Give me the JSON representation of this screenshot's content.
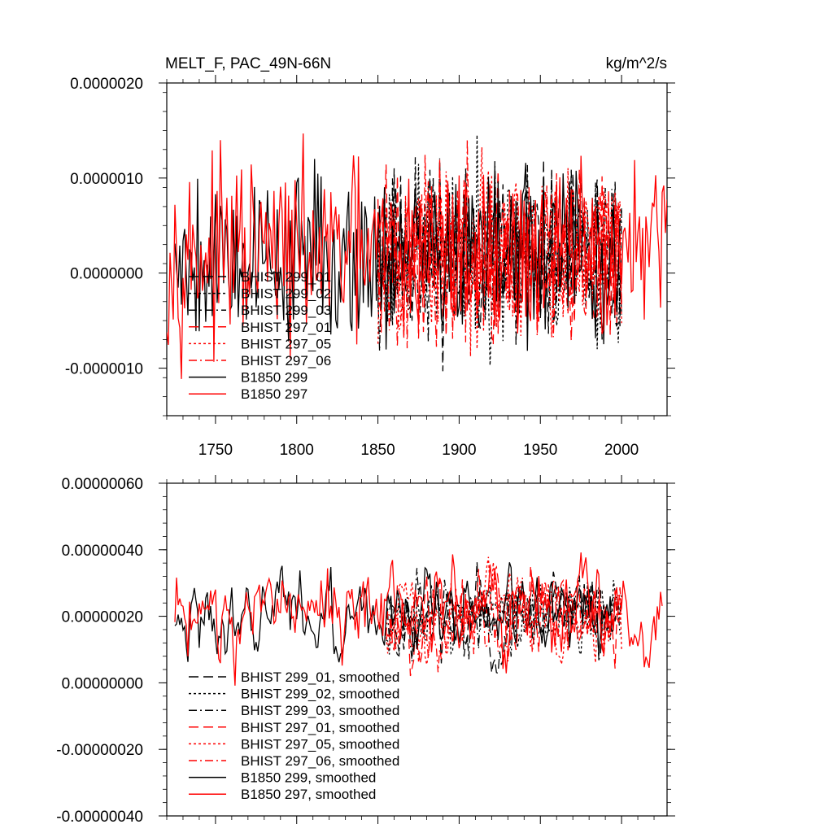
{
  "header": {
    "title": "MELT_F, PAC_49N-66N",
    "units": "kg/m^2/s"
  },
  "colors": {
    "black": "#000000",
    "red": "#ff0000"
  },
  "chart_data": [
    {
      "type": "line",
      "title": "MELT_F, PAC_49N-66N",
      "units": "kg/m^2/s",
      "xlim": [
        1720,
        2028
      ],
      "ylim": [
        -1.5e-06,
        2e-06
      ],
      "x_ticks": [
        1750,
        1800,
        1850,
        1900,
        1950,
        2000
      ],
      "x_tick_labels": [
        "1750",
        "1800",
        "1850",
        "1900",
        "1950",
        "2000"
      ],
      "y_ticks": [
        2e-06,
        1e-06,
        0,
        -1e-06
      ],
      "y_tick_labels": [
        "0.0000020",
        "0.0000010",
        "0.0000000",
        "-0.0000010"
      ],
      "legend_location": "lower-left",
      "series": [
        {
          "name": "BHIST 299_01",
          "color": "#000000",
          "dash": "long-dash",
          "x_start": 1850,
          "x_end": 2000,
          "mean": 2e-07,
          "amp": 4.5e-07,
          "seed": 11
        },
        {
          "name": "BHIST 299_02",
          "color": "#000000",
          "dash": "dot",
          "x_start": 1850,
          "x_end": 2000,
          "mean": 2e-07,
          "amp": 4.5e-07,
          "seed": 23
        },
        {
          "name": "BHIST 299_03",
          "color": "#000000",
          "dash": "dash-dot",
          "x_start": 1850,
          "x_end": 2000,
          "mean": 2e-07,
          "amp": 4.5e-07,
          "seed": 37
        },
        {
          "name": "BHIST 297_01",
          "color": "#ff0000",
          "dash": "long-dash",
          "x_start": 1850,
          "x_end": 2000,
          "mean": 2e-07,
          "amp": 4.5e-07,
          "seed": 41
        },
        {
          "name": "BHIST 297_05",
          "color": "#ff0000",
          "dash": "dot",
          "x_start": 1850,
          "x_end": 2000,
          "mean": 2e-07,
          "amp": 4.5e-07,
          "seed": 53
        },
        {
          "name": "BHIST 297_06",
          "color": "#ff0000",
          "dash": "dash-dot",
          "x_start": 1850,
          "x_end": 2000,
          "mean": 2e-07,
          "amp": 4.5e-07,
          "seed": 67
        },
        {
          "name": "B1850 299",
          "color": "#000000",
          "dash": "solid",
          "x_start": 1725,
          "x_end": 2000,
          "mean": 2e-07,
          "amp": 4.5e-07,
          "seed": 79
        },
        {
          "name": "B1850 297",
          "color": "#ff0000",
          "dash": "solid",
          "x_start": 1720,
          "x_end": 2028,
          "mean": 2e-07,
          "amp": 4.5e-07,
          "seed": 97
        }
      ]
    },
    {
      "type": "line",
      "title": "",
      "xlim": [
        1720,
        2028
      ],
      "ylim": [
        -4e-07,
        6e-07
      ],
      "x_ticks": [
        1750,
        1800,
        1850,
        1900,
        1950,
        2000
      ],
      "x_tick_labels": [],
      "y_ticks": [
        6e-07,
        4e-07,
        2e-07,
        0,
        -2e-07,
        -4e-07
      ],
      "y_tick_labels": [
        "0.00000060",
        "0.00000040",
        "0.00000020",
        "0.00000000",
        "-0.00000020",
        "-0.00000040"
      ],
      "legend_location": "lower-left",
      "series": [
        {
          "name": "BHIST 299_01, smoothed",
          "color": "#000000",
          "dash": "long-dash",
          "x_start": 1855,
          "x_end": 2000,
          "mean": 2e-07,
          "amp": 1.2e-07,
          "seed": 111
        },
        {
          "name": "BHIST 299_02, smoothed",
          "color": "#000000",
          "dash": "dot",
          "x_start": 1855,
          "x_end": 2000,
          "mean": 2e-07,
          "amp": 1.2e-07,
          "seed": 123
        },
        {
          "name": "BHIST 299_03, smoothed",
          "color": "#000000",
          "dash": "dash-dot",
          "x_start": 1855,
          "x_end": 2000,
          "mean": 2e-07,
          "amp": 1.2e-07,
          "seed": 137
        },
        {
          "name": "BHIST 297_01, smoothed",
          "color": "#ff0000",
          "dash": "long-dash",
          "x_start": 1855,
          "x_end": 2000,
          "mean": 2.2e-07,
          "amp": 1.4e-07,
          "seed": 141
        },
        {
          "name": "BHIST 297_05, smoothed",
          "color": "#ff0000",
          "dash": "dot",
          "x_start": 1855,
          "x_end": 2000,
          "mean": 2e-07,
          "amp": 1.3e-07,
          "seed": 153
        },
        {
          "name": "BHIST 297_06, smoothed",
          "color": "#ff0000",
          "dash": "dash-dot",
          "x_start": 1855,
          "x_end": 2000,
          "mean": 2e-07,
          "amp": 1.2e-07,
          "seed": 167
        },
        {
          "name": "B1850 299, smoothed",
          "color": "#000000",
          "dash": "solid",
          "x_start": 1725,
          "x_end": 1995,
          "mean": 2e-07,
          "amp": 1.2e-07,
          "seed": 179
        },
        {
          "name": "B1850 297, smoothed",
          "color": "#ff0000",
          "dash": "solid",
          "x_start": 1725,
          "x_end": 2025,
          "mean": 2.2e-07,
          "amp": 1.4e-07,
          "seed": 197
        }
      ]
    }
  ]
}
